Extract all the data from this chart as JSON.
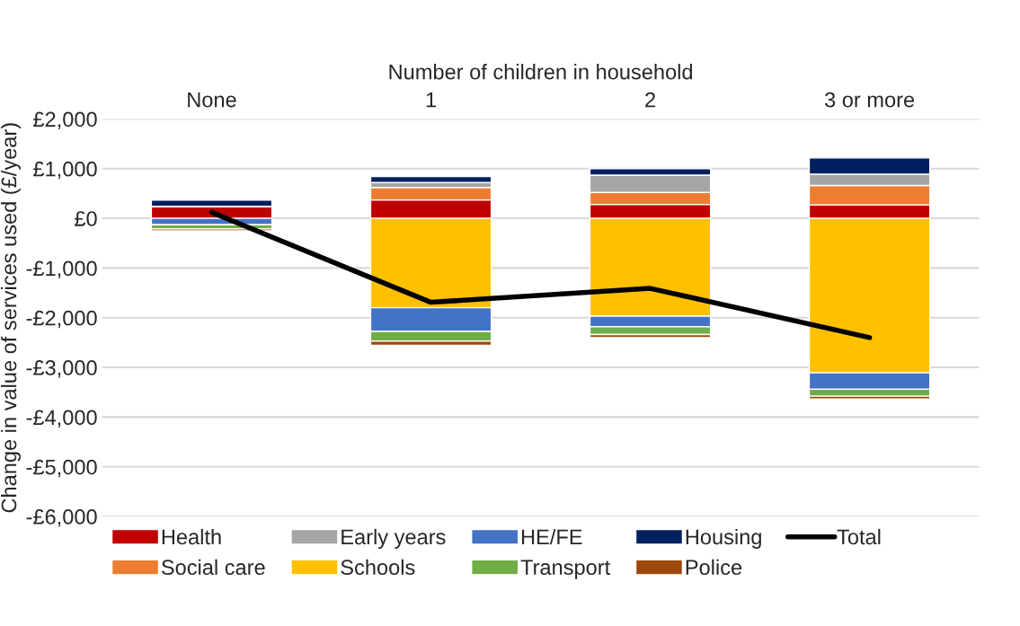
{
  "chart_data": {
    "type": "bar",
    "stacked": true,
    "xlabel": "Number of children in household",
    "ylabel": "Change in value of services used (£/year)",
    "categories": [
      "None",
      "1",
      "2",
      "3 or more"
    ],
    "series": [
      {
        "name": "Health",
        "color": "#c00000",
        "values": [
          240,
          370,
          280,
          270
        ]
      },
      {
        "name": "Social care",
        "color": "#ed7d31",
        "values": [
          0,
          250,
          240,
          390
        ]
      },
      {
        "name": "Early years",
        "color": "#a5a5a5",
        "values": [
          0,
          100,
          350,
          230
        ]
      },
      {
        "name": "Schools",
        "color": "#ffc000",
        "values": [
          0,
          -1800,
          -1970,
          -3110
        ]
      },
      {
        "name": "HE/FE",
        "color": "#4472c4",
        "values": [
          -130,
          -475,
          -210,
          -330
        ]
      },
      {
        "name": "Transport",
        "color": "#70ad47",
        "values": [
          -80,
          -195,
          -160,
          -140
        ]
      },
      {
        "name": "Housing",
        "color": "#002060",
        "values": [
          125,
          120,
          130,
          325
        ]
      },
      {
        "name": "Police",
        "color": "#9e480e",
        "values": [
          -40,
          -85,
          -60,
          -55
        ]
      },
      {
        "name": "Total",
        "type": "line",
        "color": "#000000",
        "values": [
          120,
          -1690,
          -1410,
          -2400
        ]
      }
    ],
    "ylim": [
      -6000,
      2000
    ],
    "yticks": [
      {
        "value": -6000,
        "label": "-£6,000"
      },
      {
        "value": -5000,
        "label": "-£5,000"
      },
      {
        "value": -4000,
        "label": "-£4,000"
      },
      {
        "value": -3000,
        "label": "-£3,000"
      },
      {
        "value": -2000,
        "label": "-£2,000"
      },
      {
        "value": -1000,
        "label": "-£1,000"
      },
      {
        "value": 0,
        "label": "£0"
      },
      {
        "value": 1000,
        "label": "£1,000"
      },
      {
        "value": 2000,
        "label": "£2,000"
      }
    ],
    "grid": "y",
    "legend": "bottom"
  }
}
